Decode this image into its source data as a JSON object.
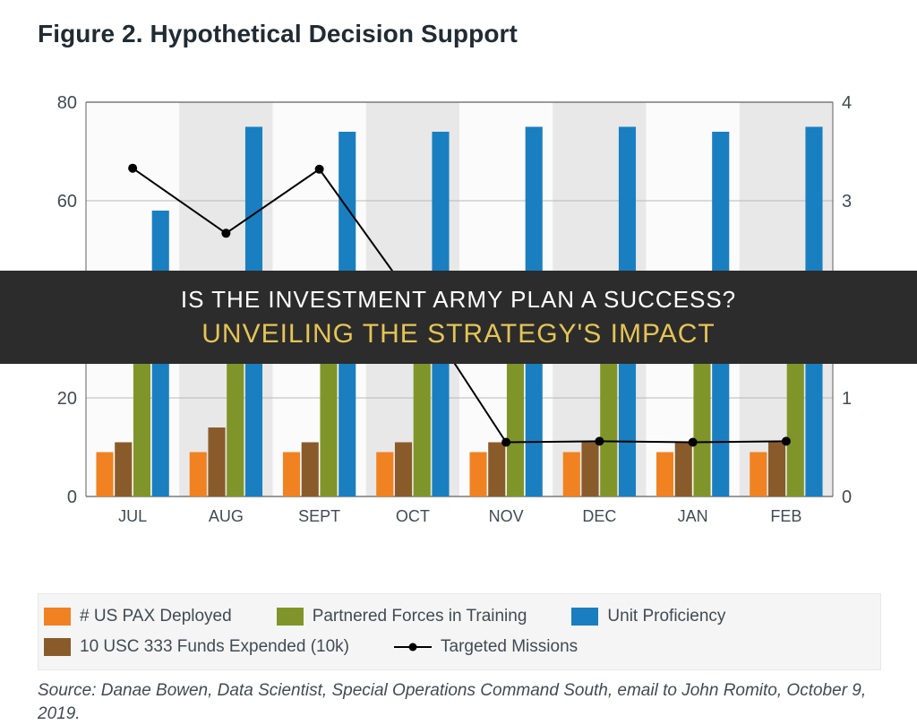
{
  "title": "Figure 2. Hypothetical Decision Support",
  "overlay": {
    "line1": "IS THE INVESTMENT ARMY PLAN A SUCCESS?",
    "line2": "UNVEILING THE STRATEGY'S IMPACT",
    "background_color": "#2c2c2c",
    "line1_color": "#ffffff",
    "line2_color": "#e5c456",
    "line1_fontsize": 26,
    "line2_fontsize": 30
  },
  "chart": {
    "type": "grouped-bar-with-line",
    "background_color": "#fbfbfb",
    "plot_border_color": "#606060",
    "gridline_color": "#b8b8b8",
    "month_band_colors": [
      "#fbfbfb",
      "#e8e8e8"
    ],
    "categories": [
      "JUL",
      "AUG",
      "SEPT",
      "OCT",
      "NOV",
      "DEC",
      "JAN",
      "FEB"
    ],
    "left_axis": {
      "min": 0,
      "max": 80,
      "step": 20,
      "ticks": [
        0,
        20,
        40,
        60,
        80
      ]
    },
    "right_axis": {
      "min": 0,
      "max": 4,
      "step": 1,
      "ticks": [
        0,
        1,
        2,
        3,
        4
      ]
    },
    "bars": {
      "group_gap_frac": 0.22,
      "bar_gap_frac": 0.02,
      "series": [
        {
          "key": "us_pax",
          "label": "# US PAX Deployed",
          "color": "#f08221",
          "values": [
            9,
            9,
            9,
            9,
            9,
            9,
            9,
            9
          ]
        },
        {
          "key": "funds_10k",
          "label": "10 USC 333 Funds Expended (10k)",
          "color": "#8a5b2a",
          "values": [
            11,
            14,
            11,
            11,
            11,
            11,
            11,
            11
          ]
        },
        {
          "key": "partnered",
          "label": "Partnered Forces in Training",
          "color": "#809529",
          "values": [
            31,
            35,
            35,
            35,
            32,
            32,
            32,
            29
          ]
        },
        {
          "key": "unit_prof",
          "label": "Unit Proficiency",
          "color": "#1a7fc0",
          "values": [
            58,
            75,
            74,
            74,
            75,
            75,
            74,
            75
          ]
        }
      ]
    },
    "line_series": {
      "key": "targeted",
      "label": "Targeted Missions",
      "color": "#000000",
      "axis": "right",
      "marker": "circle",
      "marker_size": 7,
      "line_width": 2,
      "values": [
        3.33,
        2.67,
        3.32,
        2.0,
        0.55,
        0.56,
        0.55,
        0.56
      ]
    },
    "axis_label_fontsize": 20,
    "month_label_fontsize": 18,
    "text_color": "#414b53"
  },
  "legend": {
    "background_color": "#f5f5f5",
    "border_color": "#e8e8e8",
    "fontsize": 19,
    "text_color": "#414b53",
    "items": [
      {
        "kind": "swatch",
        "label": "# US PAX Deployed",
        "color": "#f08221"
      },
      {
        "kind": "swatch",
        "label": "Partnered Forces in Training",
        "color": "#809529"
      },
      {
        "kind": "swatch",
        "label": "Unit Proficiency",
        "color": "#1a7fc0"
      },
      {
        "kind": "swatch",
        "label": "10 USC 333 Funds Expended (10k)",
        "color": "#8a5b2a"
      },
      {
        "kind": "line",
        "label": "Targeted Missions",
        "color": "#000000"
      }
    ]
  },
  "source": {
    "prefix": "Source: ",
    "text": "Danae Bowen, Data Scientist, Special Operations Command South, email to John Romito, October 9, 2019.",
    "fontsize": 19,
    "color": "#414b53"
  }
}
